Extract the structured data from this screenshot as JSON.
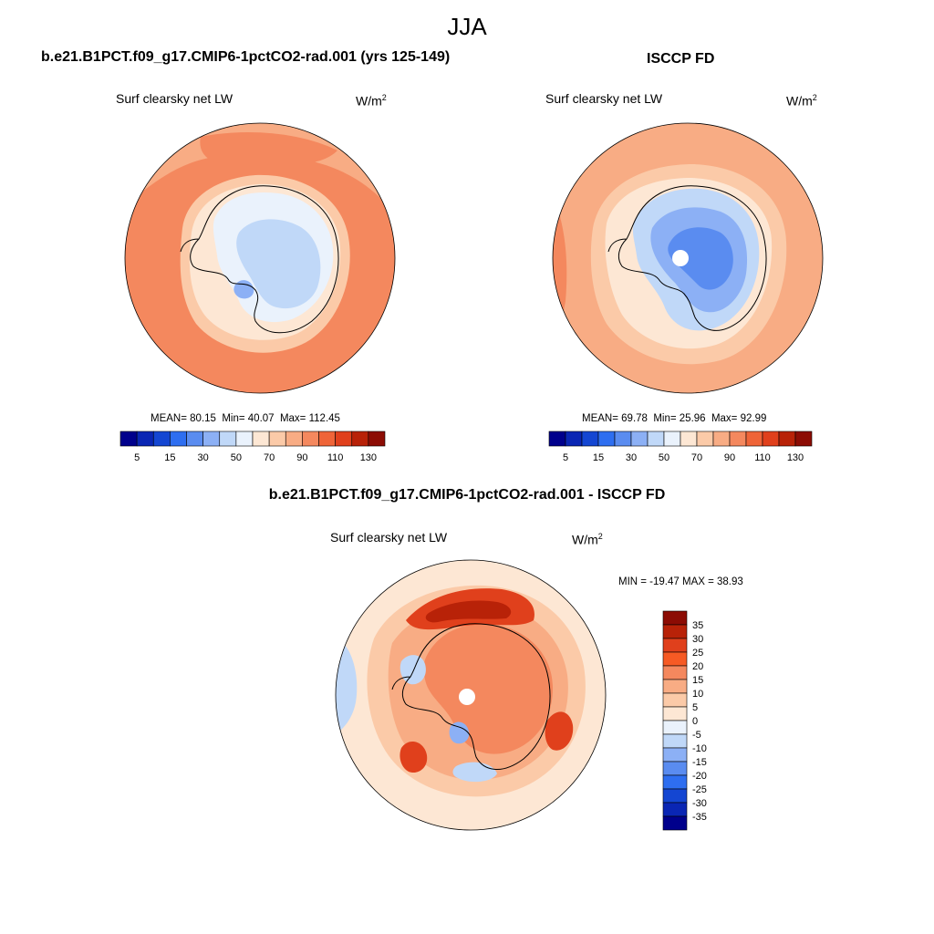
{
  "figure": {
    "season_title": "JJA",
    "diff_title": "b.e21.B1PCT.f09_g17.CMIP6-1pctCO2-rad.001 - ISCCP FD",
    "units_base": "W/m",
    "units_exp": "2"
  },
  "panels": [
    {
      "title": "b.e21.B1PCT.f09_g17.CMIP6-1pctCO2-rad.001 (yrs 125-149)",
      "variable": "Surf clearsky net LW",
      "stats": {
        "mean_label": "MEAN=",
        "mean": "80.15",
        "min_label": "Min=",
        "min": "40.07",
        "max_label": "Max=",
        "max": "112.45"
      }
    },
    {
      "title": "ISCCP FD",
      "variable": "Surf clearsky net LW",
      "stats": {
        "mean_label": "MEAN=",
        "mean": "69.78",
        "min_label": "Min=",
        "min": "25.96",
        "max_label": "Max=",
        "max": "92.99"
      }
    },
    {
      "title": "b.e21.B1PCT.f09_g17.CMIP6-1pctCO2-rad.001 - ISCCP FD",
      "variable": "Surf clearsky net LW",
      "stats_text": "MIN = -19.47 MAX =  38.93"
    }
  ],
  "colorbar_main": {
    "labels": [
      "5",
      "15",
      "30",
      "50",
      "70",
      "90",
      "110",
      "130"
    ],
    "colors": [
      "#00008c",
      "#0a26b4",
      "#1446d2",
      "#2e6ef0",
      "#5a8cf0",
      "#8cb0f5",
      "#c0d8f8",
      "#eaf2fc",
      "#fde7d4",
      "#fbcaa8",
      "#f8ac84",
      "#f4885e",
      "#ef6438",
      "#e0401c",
      "#b82208",
      "#8c0c04"
    ]
  },
  "colorbar_diff": {
    "labels": [
      "35",
      "30",
      "25",
      "20",
      "15",
      "10",
      "5",
      "0",
      "-5",
      "-10",
      "-15",
      "-20",
      "-25",
      "-30",
      "-35"
    ],
    "colors": [
      "#8c0c04",
      "#b82208",
      "#e0401c",
      "#f65a24",
      "#f4885e",
      "#f8ac84",
      "#fbcaa8",
      "#fde7d4",
      "#eaf2fc",
      "#c0d8f8",
      "#8cb0f5",
      "#5a8cf0",
      "#2e6ef0",
      "#1446d2",
      "#0a26b4",
      "#00008c"
    ]
  },
  "map_colors": {
    "ocean_warm": "#f4885e",
    "ocean_mid": "#f8ac84",
    "ocean_light": "#fbcaa8",
    "coast_pale": "#fde7d4",
    "ice_light": "#eaf2fc",
    "ice_blue": "#c0d8f8",
    "ice_mid": "#8cb0f5",
    "ice_deep": "#5a8cf0",
    "diff_strong": "#e0401c",
    "diff_dark": "#b82208",
    "outline": "#000000"
  }
}
